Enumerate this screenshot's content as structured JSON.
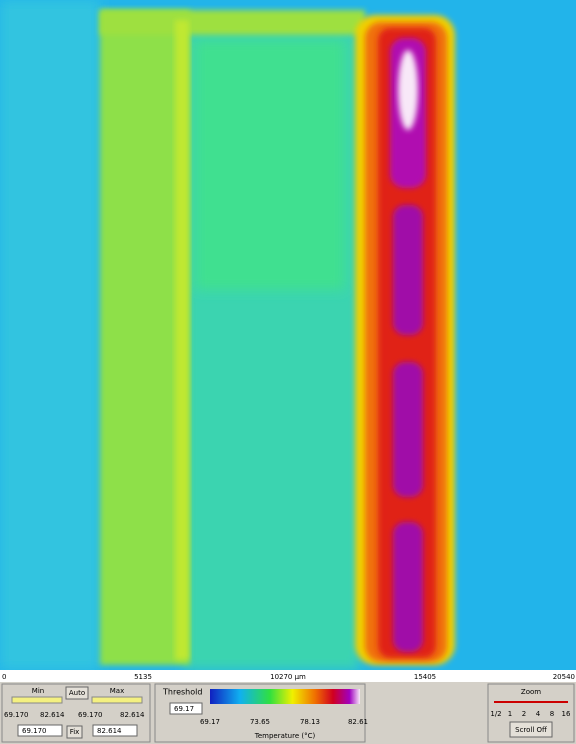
{
  "image": {
    "ruler_labels": [
      "0",
      "5135",
      "10270 µm",
      "15405",
      "20540"
    ]
  },
  "range_panel": {
    "min_label": "Min",
    "auto_button": "Auto",
    "max_label": "Max",
    "min_slider_values": [
      "69.170",
      "82.614"
    ],
    "max_slider_values": [
      "69.170",
      "82.614"
    ],
    "min_input": "69.170",
    "fix_button": "Fix",
    "max_input": "82.614"
  },
  "threshold_panel": {
    "title": "Threshold",
    "input": "69.17",
    "scale_labels": [
      "69.17",
      "73.65",
      "78.13",
      "82.61"
    ],
    "axis_label": "Temperature (°C)"
  },
  "zoom_panel": {
    "title": "Zoom",
    "levels": [
      "1/2",
      "1",
      "2",
      "4",
      "8",
      "16"
    ],
    "scroll_button": "Scroll Off"
  }
}
